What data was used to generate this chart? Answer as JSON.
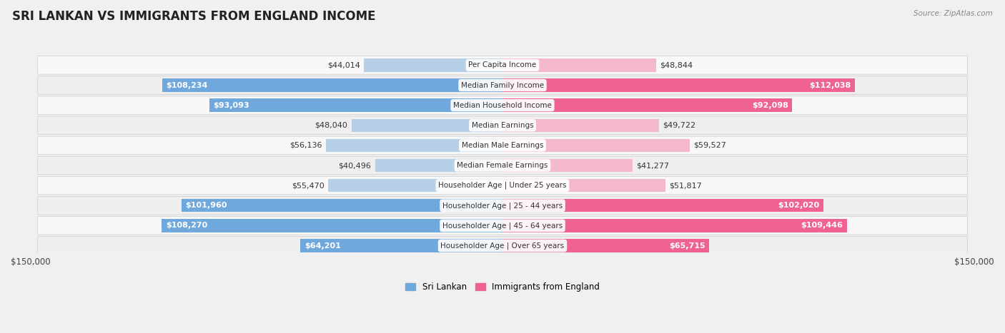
{
  "title": "SRI LANKAN VS IMMIGRANTS FROM ENGLAND INCOME",
  "source": "Source: ZipAtlas.com",
  "categories": [
    "Per Capita Income",
    "Median Family Income",
    "Median Household Income",
    "Median Earnings",
    "Median Male Earnings",
    "Median Female Earnings",
    "Householder Age | Under 25 years",
    "Householder Age | 25 - 44 years",
    "Householder Age | 45 - 64 years",
    "Householder Age | Over 65 years"
  ],
  "sri_lankan": [
    44014,
    108234,
    93093,
    48040,
    56136,
    40496,
    55470,
    101960,
    108270,
    64201
  ],
  "immigrants_england": [
    48844,
    112038,
    92098,
    49722,
    59527,
    41277,
    51817,
    102020,
    109446,
    65715
  ],
  "sri_lankan_labels": [
    "$44,014",
    "$108,234",
    "$93,093",
    "$48,040",
    "$56,136",
    "$40,496",
    "$55,470",
    "$101,960",
    "$108,270",
    "$64,201"
  ],
  "immigrants_labels": [
    "$48,844",
    "$112,038",
    "$92,098",
    "$49,722",
    "$59,527",
    "$41,277",
    "$51,817",
    "$102,020",
    "$109,446",
    "$65,715"
  ],
  "sri_lankan_color_light": "#b8cfe8",
  "sri_lankan_color_dark": "#6fa8dc",
  "immigrants_color_light": "#f4b8cc",
  "immigrants_color_dark": "#f06292",
  "inside_label_threshold": 60000,
  "max_val": 150000,
  "background_color": "#f0f0f0",
  "row_bg_even": "#f8f8f8",
  "row_bg_odd": "#efefef",
  "title_fontsize": 12,
  "label_fontsize": 8,
  "category_fontsize": 7.5,
  "legend_sri_lankan": "Sri Lankan",
  "legend_immigrants": "Immigrants from England"
}
